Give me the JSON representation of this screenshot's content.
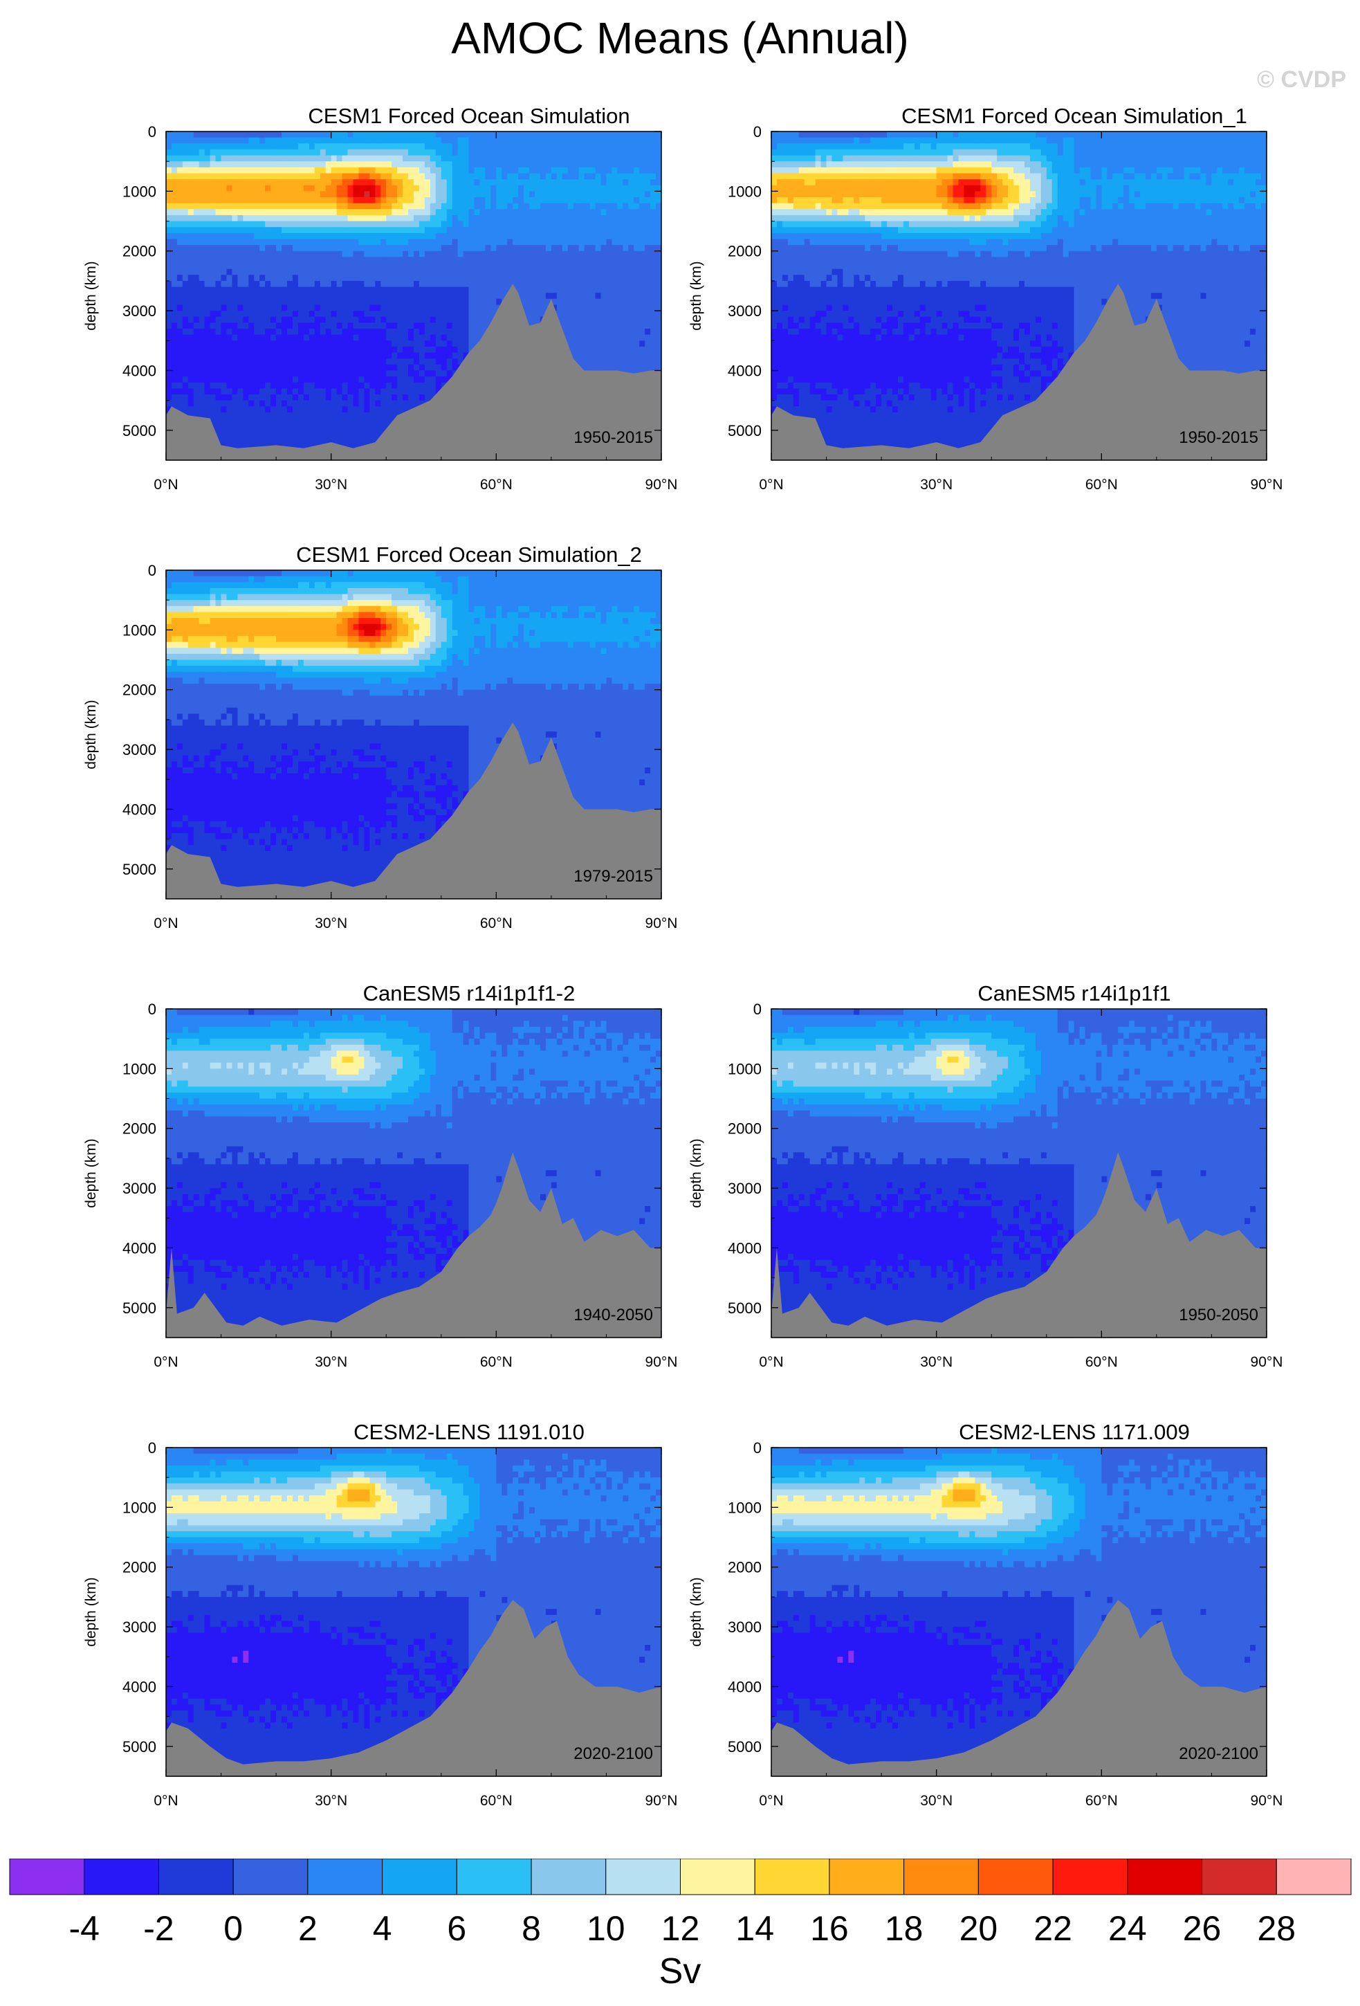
{
  "title": "AMOC Means (Annual)",
  "watermark": "© CVDP",
  "chart_data": [
    {
      "type": "heatmap",
      "title": "CESM1 Forced Ocean Simulation",
      "period": "1950-2015",
      "ylabel": "depth (km)",
      "xlabel": "",
      "xticks": [
        "0°N",
        "30°N",
        "60°N",
        "90°N"
      ],
      "yticks": [
        "0",
        "1000",
        "2000",
        "3000",
        "4000",
        "5000"
      ],
      "xlim": [
        0,
        90
      ],
      "ylim": [
        0,
        5500
      ],
      "core": {
        "lat": 36,
        "depth": 1000,
        "max_sv": 25
      },
      "cell_extent_lat": 55,
      "upper_cell_base_depth": 2600,
      "cell_shape": "cesm1",
      "bathymetry": [
        [
          0,
          4750
        ],
        [
          1,
          4600
        ],
        [
          4,
          4750
        ],
        [
          8,
          4800
        ],
        [
          10,
          5250
        ],
        [
          13,
          5300
        ],
        [
          20,
          5250
        ],
        [
          25,
          5300
        ],
        [
          30,
          5200
        ],
        [
          34,
          5300
        ],
        [
          38,
          5200
        ],
        [
          42,
          4750
        ],
        [
          48,
          4500
        ],
        [
          52,
          4100
        ],
        [
          55,
          3700
        ],
        [
          57,
          3500
        ],
        [
          59,
          3200
        ],
        [
          61,
          2850
        ],
        [
          63,
          2550
        ],
        [
          64,
          2700
        ],
        [
          66,
          3250
        ],
        [
          68,
          3200
        ],
        [
          70,
          2800
        ],
        [
          72,
          3300
        ],
        [
          74,
          3800
        ],
        [
          76,
          4000
        ],
        [
          82,
          4000
        ],
        [
          85,
          4050
        ],
        [
          88,
          4000
        ],
        [
          90,
          4000
        ]
      ]
    },
    {
      "type": "heatmap",
      "title": "CESM1 Forced Ocean Simulation_1",
      "period": "1950-2015",
      "ylabel": "depth (km)",
      "xlabel": "",
      "xticks": [
        "0°N",
        "30°N",
        "60°N",
        "90°N"
      ],
      "yticks": [
        "0",
        "1000",
        "2000",
        "3000",
        "4000",
        "5000"
      ],
      "xlim": [
        0,
        90
      ],
      "ylim": [
        0,
        5500
      ],
      "core": {
        "lat": 36,
        "depth": 1000,
        "max_sv": 24
      },
      "cell_extent_lat": 55,
      "upper_cell_base_depth": 2600,
      "cell_shape": "cesm1",
      "bathymetry": [
        [
          0,
          4750
        ],
        [
          1,
          4600
        ],
        [
          4,
          4750
        ],
        [
          8,
          4800
        ],
        [
          10,
          5250
        ],
        [
          13,
          5300
        ],
        [
          20,
          5250
        ],
        [
          25,
          5300
        ],
        [
          30,
          5200
        ],
        [
          34,
          5300
        ],
        [
          38,
          5200
        ],
        [
          42,
          4750
        ],
        [
          48,
          4500
        ],
        [
          52,
          4100
        ],
        [
          55,
          3700
        ],
        [
          57,
          3500
        ],
        [
          59,
          3200
        ],
        [
          61,
          2850
        ],
        [
          63,
          2550
        ],
        [
          64,
          2700
        ],
        [
          66,
          3250
        ],
        [
          68,
          3200
        ],
        [
          70,
          2800
        ],
        [
          72,
          3300
        ],
        [
          74,
          3800
        ],
        [
          76,
          4000
        ],
        [
          82,
          4000
        ],
        [
          85,
          4050
        ],
        [
          88,
          4000
        ],
        [
          90,
          4000
        ]
      ]
    },
    {
      "type": "heatmap",
      "title": "CESM1 Forced Ocean Simulation_2",
      "period": "1979-2015",
      "ylabel": "depth (km)",
      "xlabel": "",
      "xticks": [
        "0°N",
        "30°N",
        "60°N",
        "90°N"
      ],
      "yticks": [
        "0",
        "1000",
        "2000",
        "3000",
        "4000",
        "5000"
      ],
      "xlim": [
        0,
        90
      ],
      "ylim": [
        0,
        5500
      ],
      "core": {
        "lat": 37,
        "depth": 950,
        "max_sv": 24
      },
      "cell_extent_lat": 55,
      "upper_cell_base_depth": 2600,
      "cell_shape": "cesm1",
      "bathymetry": [
        [
          0,
          4750
        ],
        [
          1,
          4600
        ],
        [
          4,
          4750
        ],
        [
          8,
          4800
        ],
        [
          10,
          5250
        ],
        [
          13,
          5300
        ],
        [
          20,
          5250
        ],
        [
          25,
          5300
        ],
        [
          30,
          5200
        ],
        [
          34,
          5300
        ],
        [
          38,
          5200
        ],
        [
          42,
          4750
        ],
        [
          48,
          4500
        ],
        [
          52,
          4100
        ],
        [
          55,
          3700
        ],
        [
          57,
          3500
        ],
        [
          59,
          3200
        ],
        [
          61,
          2850
        ],
        [
          63,
          2550
        ],
        [
          64,
          2700
        ],
        [
          66,
          3250
        ],
        [
          68,
          3200
        ],
        [
          70,
          2800
        ],
        [
          72,
          3300
        ],
        [
          74,
          3800
        ],
        [
          76,
          4000
        ],
        [
          82,
          4000
        ],
        [
          85,
          4050
        ],
        [
          88,
          4000
        ],
        [
          90,
          4000
        ]
      ]
    },
    {
      "type": "heatmap",
      "title": "CanESM5 r14i1p1f1-2",
      "period": "1940-2050",
      "ylabel": "depth (km)",
      "xlabel": "",
      "xticks": [
        "0°N",
        "30°N",
        "60°N",
        "90°N"
      ],
      "yticks": [
        "0",
        "1000",
        "2000",
        "3000",
        "4000",
        "5000"
      ],
      "xlim": [
        0,
        90
      ],
      "ylim": [
        0,
        5500
      ],
      "core": {
        "lat": 33,
        "depth": 850,
        "max_sv": 13
      },
      "cell_extent_lat": 52,
      "upper_cell_base_depth": 2600,
      "cell_shape": "canesm",
      "bathymetry": [
        [
          0,
          5100
        ],
        [
          1,
          4000
        ],
        [
          2,
          5100
        ],
        [
          5,
          5000
        ],
        [
          7,
          4750
        ],
        [
          9,
          5000
        ],
        [
          11,
          5250
        ],
        [
          14,
          5300
        ],
        [
          17,
          5150
        ],
        [
          21,
          5300
        ],
        [
          26,
          5200
        ],
        [
          31,
          5250
        ],
        [
          36,
          5000
        ],
        [
          39,
          4850
        ],
        [
          42,
          4750
        ],
        [
          46,
          4650
        ],
        [
          50,
          4400
        ],
        [
          53,
          4000
        ],
        [
          55,
          3800
        ],
        [
          57,
          3650
        ],
        [
          59,
          3450
        ],
        [
          60,
          3250
        ],
        [
          61,
          3000
        ],
        [
          62,
          2700
        ],
        [
          63,
          2400
        ],
        [
          64,
          2650
        ],
        [
          66,
          3200
        ],
        [
          68,
          3400
        ],
        [
          70,
          3000
        ],
        [
          72,
          3600
        ],
        [
          74,
          3500
        ],
        [
          76,
          3900
        ],
        [
          79,
          3700
        ],
        [
          82,
          3800
        ],
        [
          85,
          3700
        ],
        [
          88,
          4000
        ],
        [
          90,
          4000
        ]
      ]
    },
    {
      "type": "heatmap",
      "title": "CanESM5 r14i1p1f1",
      "period": "1950-2050",
      "ylabel": "depth (km)",
      "xlabel": "",
      "xticks": [
        "0°N",
        "30°N",
        "60°N",
        "90°N"
      ],
      "yticks": [
        "0",
        "1000",
        "2000",
        "3000",
        "4000",
        "5000"
      ],
      "xlim": [
        0,
        90
      ],
      "ylim": [
        0,
        5500
      ],
      "core": {
        "lat": 33,
        "depth": 850,
        "max_sv": 13
      },
      "cell_extent_lat": 52,
      "upper_cell_base_depth": 2600,
      "cell_shape": "canesm",
      "bathymetry": [
        [
          0,
          5100
        ],
        [
          1,
          4000
        ],
        [
          2,
          5100
        ],
        [
          5,
          5000
        ],
        [
          7,
          4750
        ],
        [
          9,
          5000
        ],
        [
          11,
          5250
        ],
        [
          14,
          5300
        ],
        [
          17,
          5150
        ],
        [
          21,
          5300
        ],
        [
          26,
          5200
        ],
        [
          31,
          5250
        ],
        [
          36,
          5000
        ],
        [
          39,
          4850
        ],
        [
          42,
          4750
        ],
        [
          46,
          4650
        ],
        [
          50,
          4400
        ],
        [
          53,
          4000
        ],
        [
          55,
          3800
        ],
        [
          57,
          3650
        ],
        [
          59,
          3450
        ],
        [
          60,
          3250
        ],
        [
          61,
          3000
        ],
        [
          62,
          2700
        ],
        [
          63,
          2400
        ],
        [
          64,
          2650
        ],
        [
          66,
          3200
        ],
        [
          68,
          3400
        ],
        [
          70,
          3000
        ],
        [
          72,
          3600
        ],
        [
          74,
          3500
        ],
        [
          76,
          3900
        ],
        [
          79,
          3700
        ],
        [
          82,
          3800
        ],
        [
          85,
          3700
        ],
        [
          88,
          4000
        ],
        [
          90,
          4000
        ]
      ]
    },
    {
      "type": "heatmap",
      "title": "CESM2-LENS 1191.010",
      "period": "2020-2100",
      "ylabel": "depth (km)",
      "xlabel": "",
      "xticks": [
        "0°N",
        "30°N",
        "60°N",
        "90°N"
      ],
      "yticks": [
        "0",
        "1000",
        "2000",
        "3000",
        "4000",
        "5000"
      ],
      "xlim": [
        0,
        90
      ],
      "ylim": [
        0,
        5500
      ],
      "core": {
        "lat": 35,
        "depth": 700,
        "max_sv": 17
      },
      "cell_extent_lat": 60,
      "upper_cell_base_depth": 2500,
      "cell_shape": "cesm2",
      "bathymetry": [
        [
          0,
          4750
        ],
        [
          1,
          4600
        ],
        [
          4,
          4700
        ],
        [
          8,
          5000
        ],
        [
          11,
          5200
        ],
        [
          14,
          5300
        ],
        [
          20,
          5250
        ],
        [
          25,
          5250
        ],
        [
          30,
          5200
        ],
        [
          35,
          5100
        ],
        [
          40,
          4900
        ],
        [
          44,
          4700
        ],
        [
          48,
          4500
        ],
        [
          52,
          4100
        ],
        [
          55,
          3700
        ],
        [
          57,
          3400
        ],
        [
          59,
          3150
        ],
        [
          61,
          2800
        ],
        [
          63,
          2550
        ],
        [
          65,
          2700
        ],
        [
          67,
          3200
        ],
        [
          69,
          3000
        ],
        [
          71,
          2900
        ],
        [
          73,
          3500
        ],
        [
          75,
          3800
        ],
        [
          78,
          4000
        ],
        [
          82,
          4000
        ],
        [
          86,
          4100
        ],
        [
          90,
          4000
        ]
      ]
    },
    {
      "type": "heatmap",
      "title": "CESM2-LENS 1171.009",
      "period": "2020-2100",
      "ylabel": "depth (km)",
      "xlabel": "",
      "xticks": [
        "0°N",
        "30°N",
        "60°N",
        "90°N"
      ],
      "yticks": [
        "0",
        "1000",
        "2000",
        "3000",
        "4000",
        "5000"
      ],
      "xlim": [
        0,
        90
      ],
      "ylim": [
        0,
        5500
      ],
      "core": {
        "lat": 35,
        "depth": 700,
        "max_sv": 17
      },
      "cell_extent_lat": 60,
      "upper_cell_base_depth": 2500,
      "cell_shape": "cesm2",
      "bathymetry": [
        [
          0,
          4750
        ],
        [
          1,
          4600
        ],
        [
          4,
          4700
        ],
        [
          8,
          5000
        ],
        [
          11,
          5200
        ],
        [
          14,
          5300
        ],
        [
          20,
          5250
        ],
        [
          25,
          5250
        ],
        [
          30,
          5200
        ],
        [
          35,
          5100
        ],
        [
          40,
          4900
        ],
        [
          44,
          4700
        ],
        [
          48,
          4500
        ],
        [
          52,
          4100
        ],
        [
          55,
          3700
        ],
        [
          57,
          3400
        ],
        [
          59,
          3150
        ],
        [
          61,
          2800
        ],
        [
          63,
          2550
        ],
        [
          65,
          2700
        ],
        [
          67,
          3200
        ],
        [
          69,
          3000
        ],
        [
          71,
          2900
        ],
        [
          73,
          3500
        ],
        [
          75,
          3800
        ],
        [
          78,
          4000
        ],
        [
          82,
          4000
        ],
        [
          86,
          4100
        ],
        [
          90,
          4000
        ]
      ]
    }
  ],
  "colorbar": {
    "label": "Sv",
    "levels": [
      "-4",
      "-2",
      "0",
      "2",
      "4",
      "6",
      "8",
      "10",
      "12",
      "14",
      "16",
      "18",
      "20",
      "22",
      "24",
      "26",
      "28"
    ],
    "colors": [
      "#8c2ff0",
      "#2817f7",
      "#1f3ad9",
      "#3562e0",
      "#2a86f5",
      "#14a5f5",
      "#2bc0f5",
      "#89c7ec",
      "#b8e0f3",
      "#fff5a0",
      "#ffd633",
      "#ffad1a",
      "#ff8a0d",
      "#ff5a0a",
      "#ff1a0d",
      "#e00000",
      "#d42a2a",
      "#ffb3b3"
    ]
  }
}
